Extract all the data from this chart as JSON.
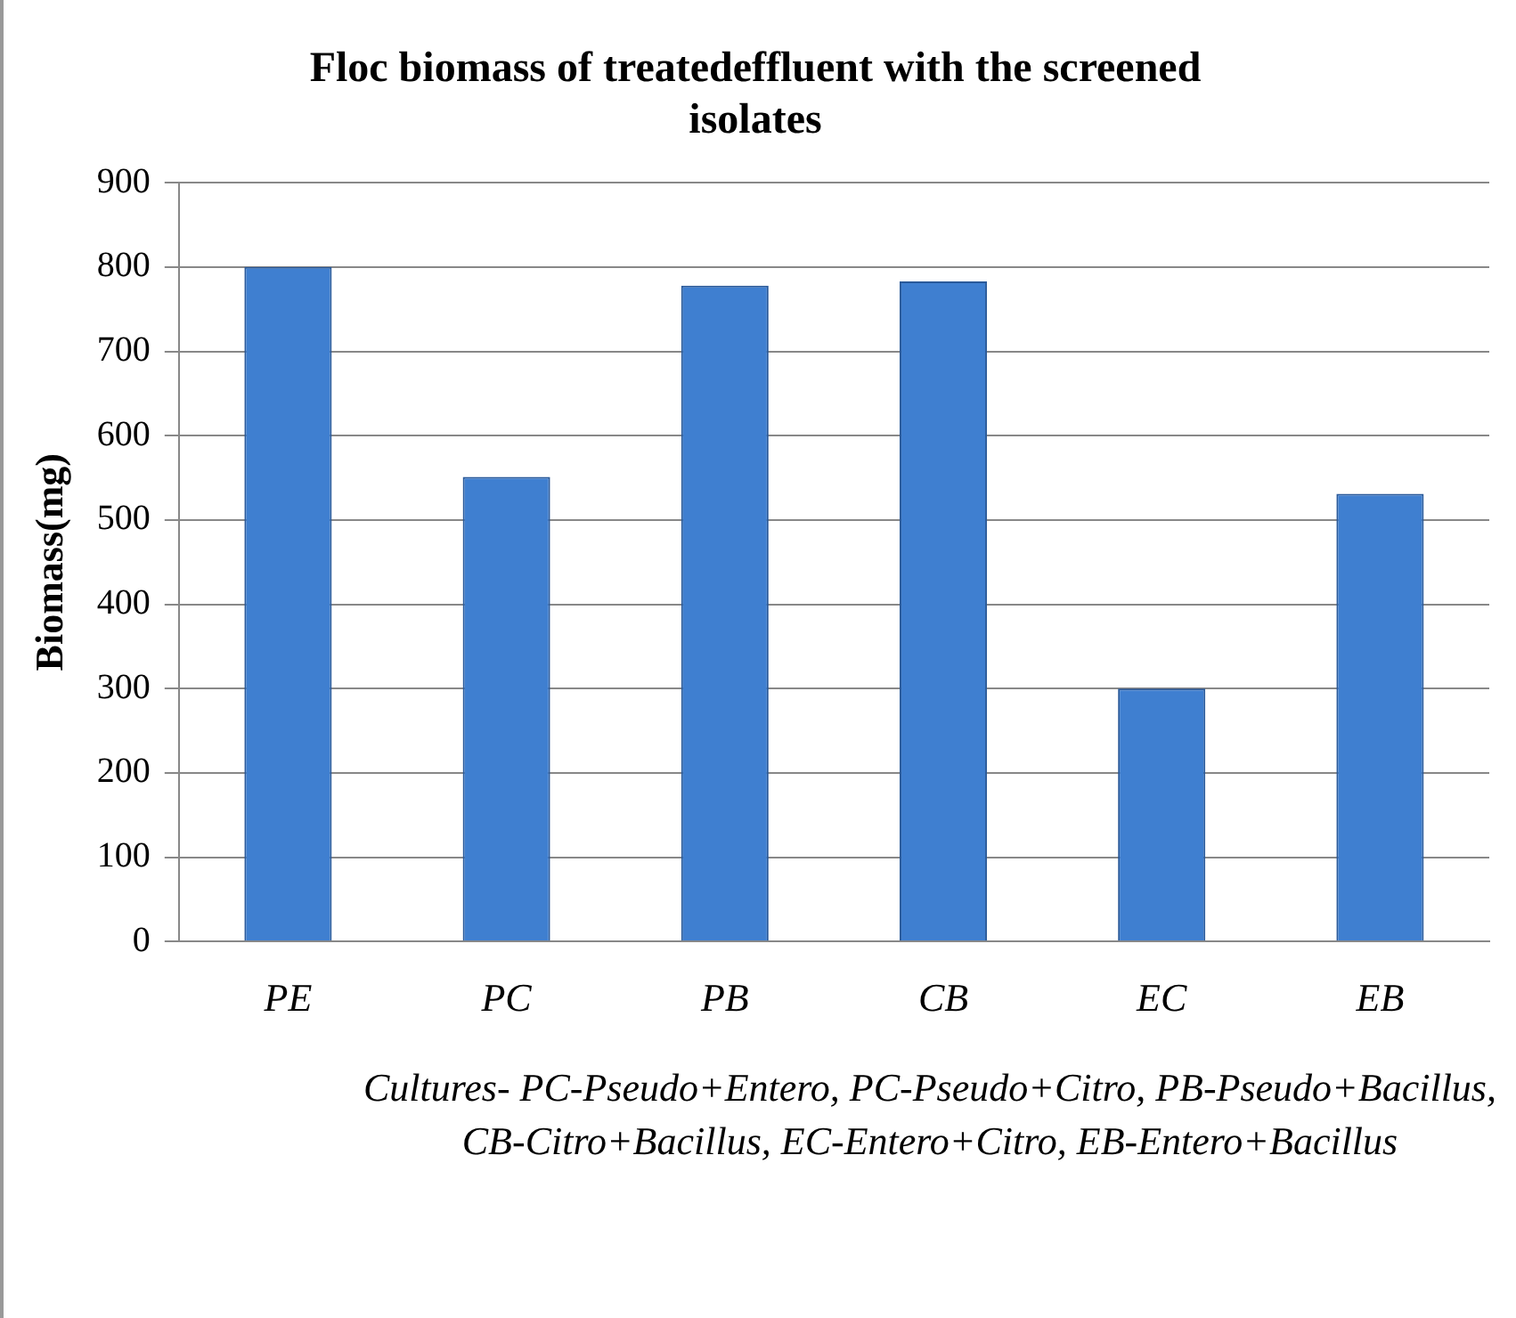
{
  "chart_data": {
    "type": "bar",
    "title": "Floc biomass of treatedeffluent with the screened isolates",
    "xlabel": "Cultures- PC-Pseudo+Entero, PC-Pseudo+Citro, PB-Pseudo+Bacillus, CB-Citro+Bacillus, EC-Entero+Citro, EB-Entero+Bacillus",
    "ylabel": "Biomass(mg)",
    "categories": [
      "PE",
      "PC",
      "PB",
      "CB",
      "EC",
      "EB"
    ],
    "values": [
      800,
      551,
      778,
      783,
      300,
      531
    ],
    "color": "#3f7fd0",
    "ylim": [
      0,
      900
    ],
    "yticks": [
      0,
      100,
      200,
      300,
      400,
      500,
      600,
      700,
      800,
      900
    ],
    "grid": "y",
    "legend": false
  }
}
